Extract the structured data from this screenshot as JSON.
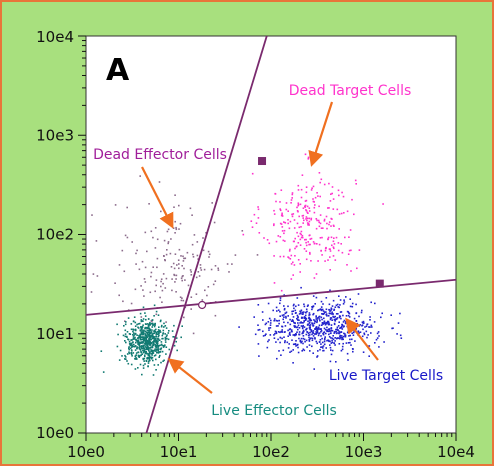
{
  "chart_data": {
    "type": "scatter",
    "panel_label": "A",
    "xscale": "log",
    "yscale": "log",
    "xlim": [
      1,
      10000
    ],
    "ylim": [
      1,
      10000
    ],
    "x_ticks": [
      "10e0",
      "10e1",
      "10e2",
      "10e3",
      "10e4"
    ],
    "y_ticks": [
      "10e0",
      "10e1",
      "10e2",
      "10e3",
      "10e4"
    ],
    "grid": false,
    "background": "#ffffff",
    "frame_color": "#a8e07e",
    "border_color": "#e8753a",
    "gates": [
      {
        "type": "line",
        "color": "#7a2a6e",
        "x": [
          4.5,
          90
        ],
        "y": [
          1,
          10000
        ],
        "handle": [
          80,
          550
        ]
      },
      {
        "type": "line",
        "color": "#7a2a6e",
        "x": [
          1,
          10000
        ],
        "y": [
          15.5,
          35
        ],
        "handle": [
          1500,
          32
        ]
      }
    ],
    "gate_intersection": [
      18,
      19.5
    ],
    "populations": [
      {
        "label": "Dead Target Cells",
        "color": "#ff33cc",
        "center": [
          250,
          130
        ],
        "count": 280,
        "spread": [
          0.25,
          0.26
        ],
        "label_color": "#ff33cc",
        "label_at": [
          320,
          1000
        ],
        "arrow_to": [
          180,
          550
        ]
      },
      {
        "label": "Dead Effector Cells",
        "color": "#8c6c8c",
        "center": [
          9,
          50
        ],
        "count": 180,
        "spread": [
          0.35,
          0.32
        ],
        "label_color": "#a01e9a",
        "label_at": [
          8,
          520
        ],
        "arrow_to": [
          27,
          120
        ]
      },
      {
        "label": "Live Target Cells",
        "color": "#2222cc",
        "center": [
          330,
          12
        ],
        "count": 700,
        "spread": [
          0.3,
          0.13
        ],
        "label_color": "#1818c8",
        "label_at": [
          1000,
          5
        ],
        "arrow_to": [
          550,
          13
        ]
      },
      {
        "label": "Live Effector Cells",
        "color": "#117a72",
        "center": [
          4.5,
          8.5
        ],
        "count": 600,
        "spread": [
          0.12,
          0.11
        ],
        "label_color": "#168c80",
        "label_at": [
          45,
          2.5
        ],
        "arrow_to": [
          8,
          5.5
        ]
      }
    ]
  }
}
